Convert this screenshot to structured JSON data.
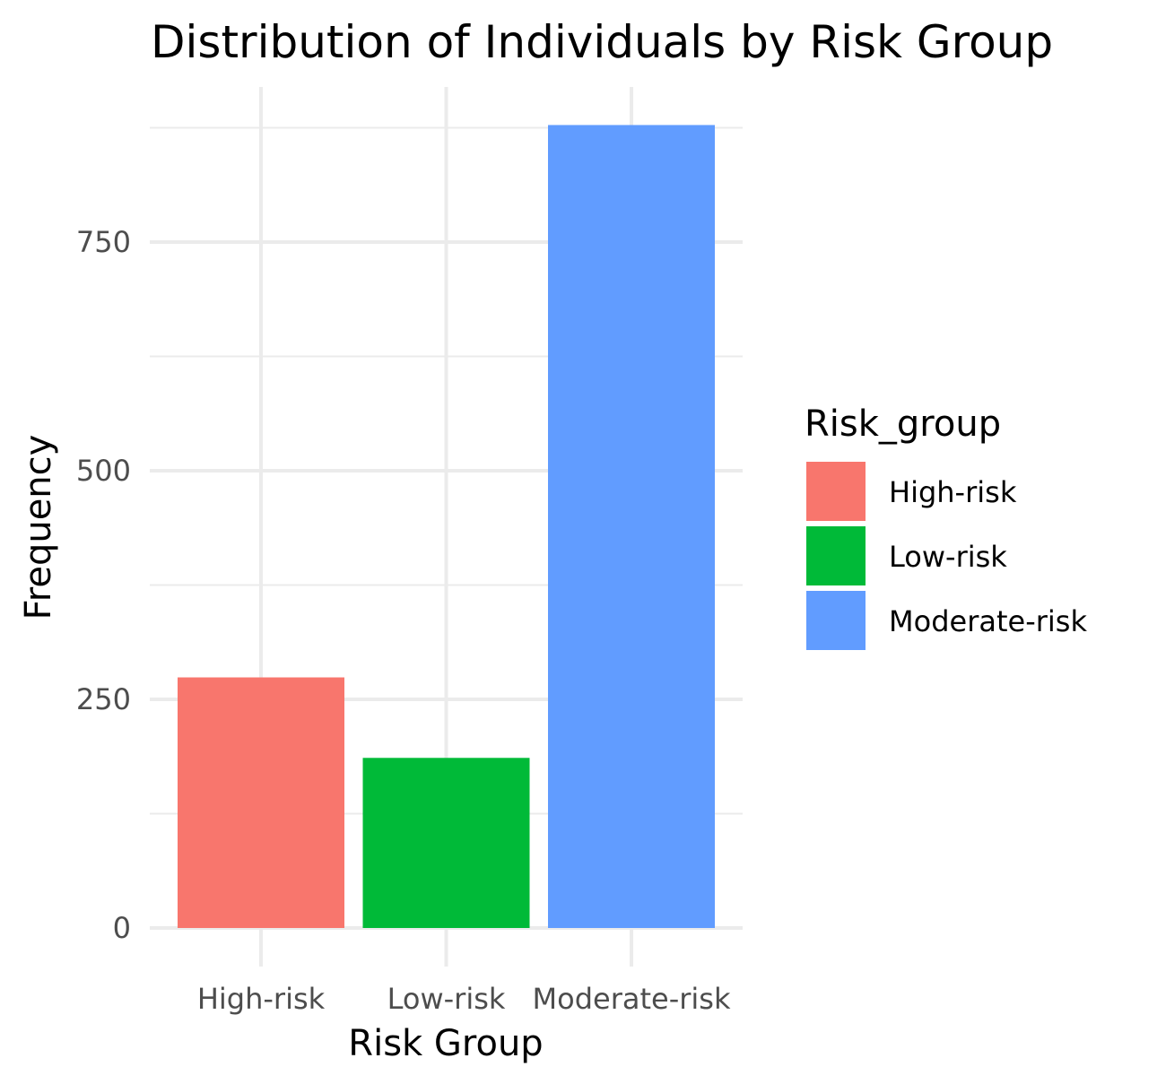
{
  "chart_data": {
    "type": "bar",
    "title": "Distribution of Individuals by Risk Group",
    "xlabel": "Risk Group",
    "ylabel": "Frequency",
    "categories": [
      "High-risk",
      "Low-risk",
      "Moderate-risk"
    ],
    "values": [
      274,
      186,
      878
    ],
    "colors": [
      "#F8766D",
      "#00BA38",
      "#619CFF"
    ],
    "ylim": [
      0,
      920
    ],
    "y_ticks": [
      0,
      250,
      500,
      750
    ],
    "grid": true,
    "legend": {
      "title": "Risk_group",
      "position": "right",
      "items": [
        "High-risk",
        "Low-risk",
        "Moderate-risk"
      ]
    }
  }
}
